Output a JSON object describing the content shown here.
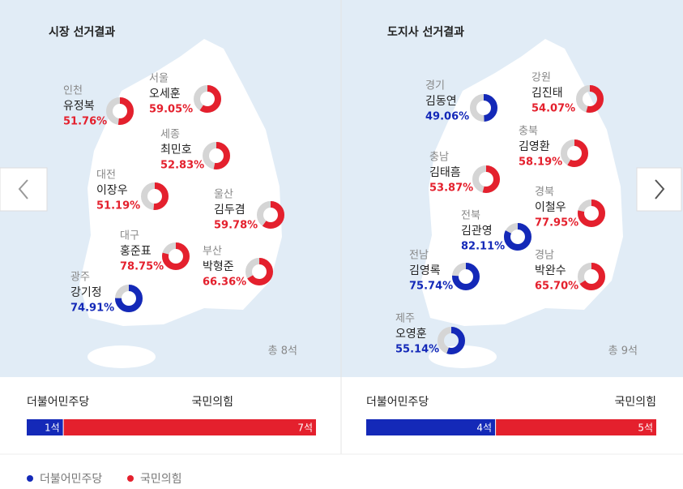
{
  "panels": [
    {
      "title": "시장 선거결과",
      "total": "총 8석",
      "candidates": [
        {
          "region": "인천",
          "name": "유정복",
          "share": {
            "value": 51.76,
            "label": "51.76%"
          },
          "color": "#e4202d"
        },
        {
          "region": "서울",
          "name": "오세훈",
          "share": {
            "value": 59.05,
            "label": "59.05%"
          },
          "color": "#e4202d"
        },
        {
          "region": "세종",
          "name": "최민호",
          "share": {
            "value": 52.83,
            "label": "52.83%"
          },
          "color": "#e4202d"
        },
        {
          "region": "대전",
          "name": "이장우",
          "share": {
            "value": 51.19,
            "label": "51.19%"
          },
          "color": "#e4202d"
        },
        {
          "region": "울산",
          "name": "김두겸",
          "share": {
            "value": 59.78,
            "label": "59.78%"
          },
          "color": "#e4202d"
        },
        {
          "region": "대구",
          "name": "홍준표",
          "share": {
            "value": 78.75,
            "label": "78.75%"
          },
          "color": "#e4202d"
        },
        {
          "region": "부산",
          "name": "박형준",
          "share": {
            "value": 66.36,
            "label": "66.36%"
          },
          "color": "#e4202d"
        },
        {
          "region": "광주",
          "name": "강기정",
          "share": {
            "value": 74.91,
            "label": "74.91%"
          },
          "color": "#1429b8"
        }
      ],
      "seats": [
        {
          "party": "더불어민주당",
          "value": 1,
          "label": "1석",
          "color": "#1429b8"
        },
        {
          "party": "국민의힘",
          "value": 7,
          "label": "7석",
          "color": "#e4202d"
        }
      ]
    },
    {
      "title": "도지사 선거결과",
      "total": "총 9석",
      "candidates": [
        {
          "region": "경기",
          "name": "김동연",
          "share": {
            "value": 49.06,
            "label": "49.06%"
          },
          "color": "#1429b8"
        },
        {
          "region": "강원",
          "name": "김진태",
          "share": {
            "value": 54.07,
            "label": "54.07%"
          },
          "color": "#e4202d"
        },
        {
          "region": "충북",
          "name": "김영환",
          "share": {
            "value": 58.19,
            "label": "58.19%"
          },
          "color": "#e4202d"
        },
        {
          "region": "충남",
          "name": "김태흠",
          "share": {
            "value": 53.87,
            "label": "53.87%"
          },
          "color": "#e4202d"
        },
        {
          "region": "전북",
          "name": "김관영",
          "share": {
            "value": 82.11,
            "label": "82.11%"
          },
          "color": "#1429b8"
        },
        {
          "region": "경북",
          "name": "이철우",
          "share": {
            "value": 77.95,
            "label": "77.95%"
          },
          "color": "#e4202d"
        },
        {
          "region": "전남",
          "name": "김영록",
          "share": {
            "value": 75.74,
            "label": "75.74%"
          },
          "color": "#1429b8"
        },
        {
          "region": "경남",
          "name": "박완수",
          "share": {
            "value": 65.7,
            "label": "65.70%"
          },
          "color": "#e4202d"
        },
        {
          "region": "제주",
          "name": "오영훈",
          "share": {
            "value": 55.14,
            "label": "55.14%"
          },
          "color": "#1429b8"
        }
      ],
      "seats": [
        {
          "party": "더불어민주당",
          "value": 4,
          "label": "4석",
          "color": "#1429b8"
        },
        {
          "party": "국민의힘",
          "value": 5,
          "label": "5석",
          "color": "#e4202d"
        }
      ]
    }
  ],
  "legend": [
    {
      "label": "더불어민주당",
      "color": "#1429b8"
    },
    {
      "label": "국민의힘",
      "color": "#e4202d"
    }
  ]
}
